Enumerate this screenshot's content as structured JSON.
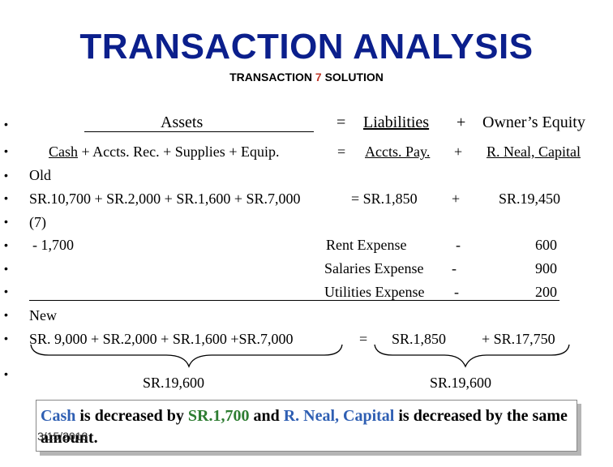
{
  "header": {
    "title": "TRANSACTION ANALYSIS",
    "subtitle_prefix": "TRANSACTION",
    "subtitle_number": "7",
    "subtitle_suffix": "SOLUTION"
  },
  "equation": {
    "assets": "Assets",
    "equals": "=",
    "liabilities": "Liabilities",
    "plus": "+",
    "owners_equity": "Owner’s Equity"
  },
  "accounts": {
    "cash": "Cash",
    "accts_rec": "+ Accts. Rec.",
    "supplies": "+ Supplies",
    "equip": "+ Equip.",
    "equals": "=",
    "accts_pay": "Accts. Pay.",
    "plus": "+",
    "capital": "R. Neal, Capital"
  },
  "rows": {
    "old_label": "Old",
    "old_assets": "SR.10,700  + SR.2,000 + SR.1,600 + SR.7,000",
    "old_equals": "= SR.1,850",
    "old_plus": "+",
    "old_capital": "SR.19,450",
    "tx_label": "(7)",
    "tx_cash": "- 1,700",
    "expenses": [
      {
        "name": "Rent Expense",
        "sign": "-",
        "amount": "600"
      },
      {
        "name": "Salaries Expense",
        "sign": "-",
        "amount": "900"
      },
      {
        "name": "Utilities Expense",
        "sign": "-",
        "amount": "200"
      }
    ],
    "new_label": "New",
    "new_assets": "SR. 9,000  +  SR.2,000 + SR.1,600  +SR.7,000",
    "new_equals": "=",
    "new_liab": "SR.1,850",
    "new_capital": "+  SR.17,750",
    "total_left": "SR.19,600",
    "total_right": "SR.19,600"
  },
  "note": {
    "w1": "Cash",
    "w2": " is decreased by ",
    "w3": "SR.1,700",
    "w4": " and ",
    "w5": "R. Neal, Capital",
    "w6": " is decreased by the same amount.",
    "date": "3/15/2018"
  },
  "bullet_char": "•"
}
